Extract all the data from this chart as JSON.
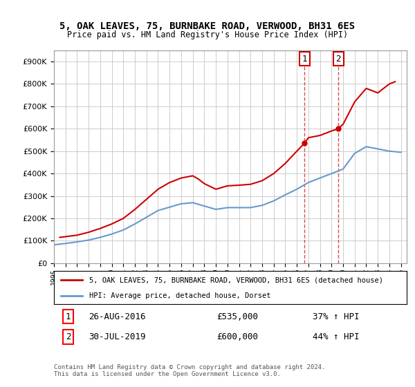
{
  "title": "5, OAK LEAVES, 75, BURNBAKE ROAD, VERWOOD, BH31 6ES",
  "subtitle": "Price paid vs. HM Land Registry's House Price Index (HPI)",
  "property_label": "5, OAK LEAVES, 75, BURNBAKE ROAD, VERWOOD, BH31 6ES (detached house)",
  "hpi_label": "HPI: Average price, detached house, Dorset",
  "sale1_label": "1",
  "sale1_date": "26-AUG-2016",
  "sale1_price": "£535,000",
  "sale1_hpi": "37% ↑ HPI",
  "sale2_label": "2",
  "sale2_date": "30-JUL-2019",
  "sale2_price": "£600,000",
  "sale2_hpi": "44% ↑ HPI",
  "footer": "Contains HM Land Registry data © Crown copyright and database right 2024.\nThis data is licensed under the Open Government Licence v3.0.",
  "property_color": "#cc0000",
  "hpi_color": "#6699cc",
  "sale1_x": 2016.65,
  "sale2_x": 2019.58,
  "sale1_y": 535000,
  "sale2_y": 600000,
  "vline1_x": 2016.65,
  "vline2_x": 2019.58,
  "ylim": [
    0,
    950000
  ],
  "xlim_start": 1995,
  "xlim_end": 2025.5,
  "background_color": "#ffffff",
  "grid_color": "#cccccc",
  "hpi_years": [
    1995,
    1996,
    1997,
    1998,
    1999,
    2000,
    2001,
    2002,
    2003,
    2004,
    2005,
    2006,
    2007,
    2008,
    2009,
    2010,
    2011,
    2012,
    2013,
    2014,
    2015,
    2016,
    2017,
    2018,
    2019,
    2020,
    2021,
    2022,
    2023,
    2024,
    2025
  ],
  "hpi_values": [
    82000,
    88000,
    95000,
    103000,
    115000,
    130000,
    148000,
    175000,
    205000,
    235000,
    250000,
    265000,
    270000,
    255000,
    240000,
    248000,
    248000,
    248000,
    258000,
    278000,
    305000,
    330000,
    360000,
    380000,
    400000,
    420000,
    490000,
    520000,
    510000,
    500000,
    495000
  ],
  "property_years": [
    1995.5,
    1997,
    1998,
    1999,
    2000,
    2001,
    2002,
    2003,
    2004,
    2005,
    2006,
    2007,
    2007.5,
    2008,
    2009,
    2010,
    2011,
    2012,
    2013,
    2014,
    2015,
    2016,
    2016.65,
    2017,
    2018,
    2019,
    2019.58,
    2020,
    2021,
    2022,
    2023,
    2024,
    2024.5
  ],
  "property_values": [
    115000,
    125000,
    138000,
    155000,
    175000,
    200000,
    240000,
    285000,
    330000,
    360000,
    380000,
    390000,
    375000,
    355000,
    330000,
    345000,
    348000,
    352000,
    368000,
    400000,
    445000,
    500000,
    535000,
    560000,
    570000,
    590000,
    600000,
    620000,
    720000,
    780000,
    760000,
    800000,
    810000
  ]
}
